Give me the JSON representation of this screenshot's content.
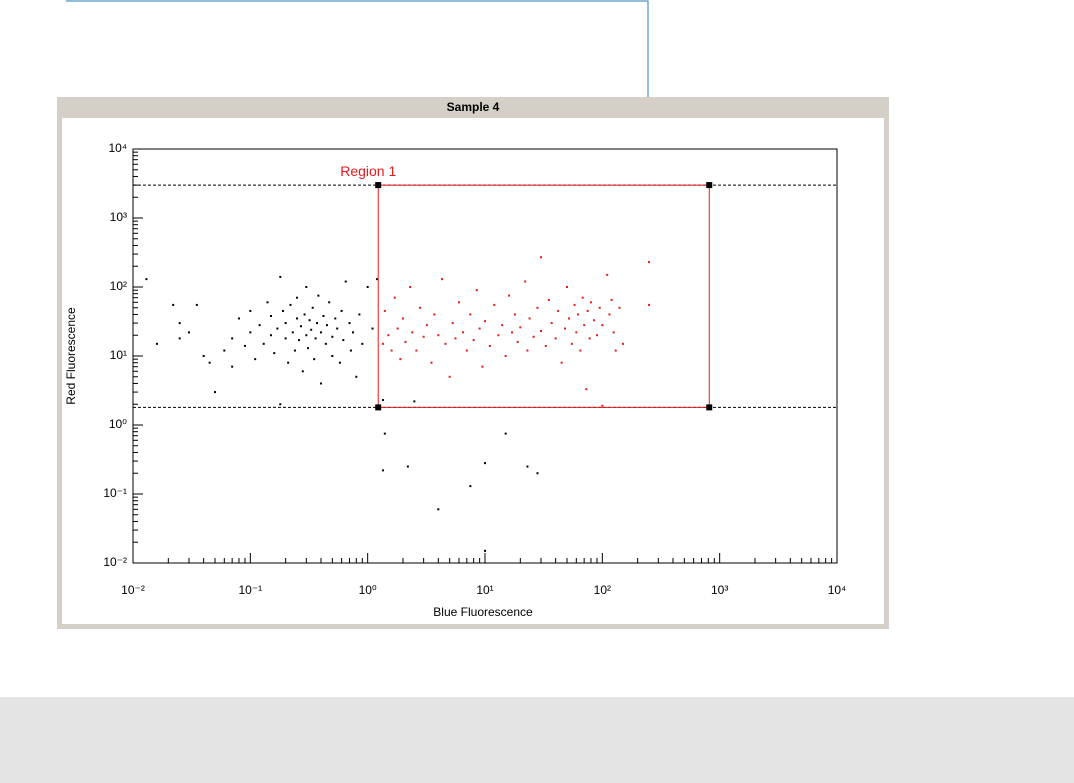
{
  "chart_data": {
    "type": "scatter",
    "title": "Sample 4",
    "x_label": "Blue Fluorescence",
    "y_label": "Red Fluorescence",
    "log_x": true,
    "log_y": true,
    "xlim": [
      0.01,
      10000
    ],
    "ylim": [
      0.01,
      10000
    ],
    "xticks": [
      {
        "value": 0.01,
        "label": "10⁻²"
      },
      {
        "value": 0.1,
        "label": "10⁻¹"
      },
      {
        "value": 1,
        "label": "10⁰"
      },
      {
        "value": 10,
        "label": "10¹"
      },
      {
        "value": 100,
        "label": "10²"
      },
      {
        "value": 1000,
        "label": "10³"
      },
      {
        "value": 10000,
        "label": "10⁴"
      }
    ],
    "yticks": [
      {
        "value": 0.01,
        "label": "10⁻²"
      },
      {
        "value": 0.1,
        "label": "10⁻¹"
      },
      {
        "value": 1,
        "label": "10⁰"
      },
      {
        "value": 10,
        "label": "10¹"
      },
      {
        "value": 100,
        "label": "10²"
      },
      {
        "value": 1000,
        "label": "10³"
      },
      {
        "value": 10000,
        "label": "10⁴"
      }
    ],
    "region": {
      "name": "Region 1",
      "color": "#e8191c",
      "xlim": [
        1.23,
        815
      ],
      "ylim": [
        1.8,
        3000
      ]
    },
    "series": [
      {
        "color": "#000000",
        "x": [
          0.013,
          0.016,
          0.022,
          0.025,
          0.025,
          0.03,
          0.035,
          0.04,
          0.045,
          0.05,
          0.06,
          0.07,
          0.07,
          0.08,
          0.09,
          0.1,
          0.1,
          0.11,
          0.12,
          0.13,
          0.14,
          0.15,
          0.15,
          0.16,
          0.17,
          0.18,
          0.18,
          0.19,
          0.2,
          0.2,
          0.21,
          0.22,
          0.23,
          0.24,
          0.25,
          0.25,
          0.26,
          0.27,
          0.28,
          0.29,
          0.3,
          0.3,
          0.31,
          0.32,
          0.33,
          0.34,
          0.35,
          0.36,
          0.37,
          0.38,
          0.4,
          0.4,
          0.42,
          0.44,
          0.45,
          0.47,
          0.5,
          0.5,
          0.53,
          0.55,
          0.58,
          0.6,
          0.62,
          0.65,
          0.7,
          0.72,
          0.75,
          0.8,
          0.85,
          0.9,
          1.0,
          1.1,
          1.2,
          1.4,
          1.35,
          2.2,
          4,
          7.5,
          10,
          15,
          23,
          28,
          10,
          1.35,
          2.5
        ],
        "y": [
          130,
          15,
          55,
          18,
          30,
          22,
          55,
          10,
          8,
          3,
          12,
          18,
          7,
          35,
          14,
          22,
          45,
          9,
          28,
          15,
          60,
          20,
          38,
          11,
          25,
          2,
          140,
          45,
          18,
          30,
          8,
          55,
          22,
          12,
          35,
          70,
          17,
          27,
          6,
          40,
          20,
          100,
          13,
          33,
          24,
          50,
          9,
          18,
          30,
          75,
          22,
          4,
          38,
          15,
          28,
          60,
          19,
          10,
          35,
          25,
          8,
          45,
          17,
          120,
          30,
          12,
          22,
          5,
          40,
          15,
          100,
          25,
          130,
          0.75,
          0.22,
          0.25,
          0.06,
          0.13,
          0.28,
          0.75,
          0.25,
          0.2,
          0.015,
          2.3,
          2.2
        ]
      },
      {
        "color": "#e8191c",
        "x": [
          1.35,
          1.4,
          1.5,
          1.6,
          1.7,
          1.8,
          1.9,
          2,
          2.1,
          2.3,
          2.4,
          2.6,
          2.8,
          3,
          3.2,
          3.5,
          3.7,
          4,
          4.3,
          4.6,
          5,
          5.3,
          5.6,
          6,
          6.5,
          7,
          7.5,
          8,
          8.5,
          9,
          9.5,
          10,
          11,
          12,
          13,
          14,
          15,
          16,
          17,
          18,
          19,
          20,
          22,
          23,
          24,
          26,
          28,
          30,
          30,
          33,
          35,
          37,
          40,
          42,
          45,
          48,
          50,
          52,
          55,
          58,
          60,
          62,
          65,
          68,
          70,
          73,
          75,
          78,
          80,
          85,
          90,
          95,
          100,
          100,
          110,
          115,
          120,
          125,
          130,
          140,
          150,
          250,
          250
        ],
        "y": [
          15,
          45,
          20,
          12,
          70,
          25,
          9,
          35,
          16,
          100,
          22,
          12,
          50,
          19,
          28,
          8,
          40,
          20,
          130,
          15,
          5,
          30,
          18,
          60,
          22,
          12,
          40,
          17,
          90,
          25,
          7,
          32,
          14,
          55,
          20,
          28,
          10,
          75,
          22,
          40,
          16,
          26,
          120,
          12,
          35,
          19,
          50,
          270,
          23,
          14,
          65,
          30,
          18,
          45,
          8,
          25,
          100,
          35,
          15,
          55,
          22,
          40,
          12,
          70,
          28,
          3.3,
          45,
          18,
          60,
          33,
          20,
          50,
          1.9,
          28,
          150,
          40,
          65,
          22,
          12,
          50,
          15,
          230,
          55
        ]
      }
    ]
  }
}
